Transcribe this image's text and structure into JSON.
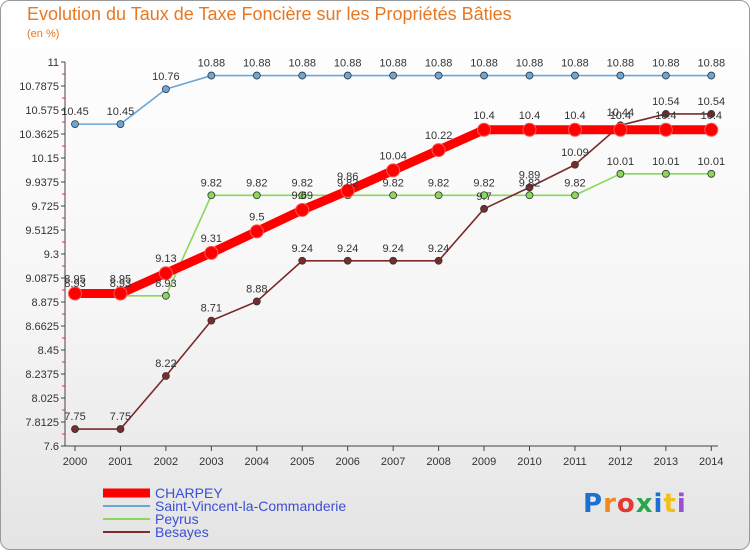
{
  "title": "Evolution du Taux de Taxe Foncière sur les Propriétés Bâties",
  "unit": "(en %)",
  "logo": "Proxiti",
  "logo_colors": [
    "#1f6fd1",
    "#f08a1c",
    "#e23a2e",
    "#2aa64a",
    "#1f6fd1",
    "#f2c01e",
    "#9a4fd6"
  ],
  "chart_data": {
    "type": "line",
    "title": "Evolution du Taux de Taxe Foncière sur les Propriétés Bâties",
    "ylabel": "(en %)",
    "xlabel": "",
    "x": [
      "2000",
      "2001",
      "2002",
      "2003",
      "2004",
      "2005",
      "2006",
      "2007",
      "2008",
      "2009",
      "2010",
      "2011",
      "2012",
      "2013",
      "2014"
    ],
    "ylim": [
      7.6,
      11
    ],
    "yticks": [
      "7.6",
      "7.8125",
      "8.025",
      "8.2375",
      "8.45",
      "8.6625",
      "8.875",
      "9.0875",
      "9.3",
      "9.5125",
      "9.725",
      "9.9375",
      "10.15",
      "10.3625",
      "10.575",
      "10.7875",
      "11"
    ],
    "grid": false,
    "legend_position": "bottom-left",
    "series": [
      {
        "name": "CHARPEY",
        "color": "#ff0000",
        "values": [
          8.95,
          8.95,
          9.13,
          9.31,
          9.5,
          9.69,
          9.86,
          10.04,
          10.22,
          10.4,
          10.4,
          10.4,
          10.4,
          10.4,
          10.4
        ],
        "labels": [
          "8.95",
          "8.95",
          "9.13",
          "9.31",
          "9.5",
          "9.69",
          "9.86",
          "10.04",
          "10.22",
          "10.4",
          "10.4",
          "10.4",
          "10.4",
          "10.4",
          "10.4"
        ]
      },
      {
        "name": "Saint-Vincent-la-Commanderie",
        "color": "#6aa7d8",
        "values": [
          10.45,
          10.45,
          10.76,
          10.88,
          10.88,
          10.88,
          10.88,
          10.88,
          10.88,
          10.88,
          10.88,
          10.88,
          10.88,
          10.88,
          10.88
        ],
        "labels": [
          "10.45",
          "10.45",
          "10.76",
          "10.88",
          "10.88",
          "10.88",
          "10.88",
          "10.88",
          "10.88",
          "10.88",
          "10.88",
          "10.88",
          "10.88",
          "10.88",
          "10.88"
        ]
      },
      {
        "name": "Peyrus",
        "color": "#88d85a",
        "values": [
          8.93,
          8.93,
          8.93,
          9.82,
          9.82,
          9.82,
          9.82,
          9.82,
          9.82,
          9.82,
          9.82,
          9.82,
          10.01,
          10.01,
          10.01
        ],
        "labels": [
          "8.93",
          "8.93",
          "8.93",
          "9.82",
          "9.82",
          "9.82",
          "9.82",
          "9.82",
          "9.82",
          "9.82",
          "9.82",
          "9.82",
          "10.01",
          "10.01",
          "10.01"
        ]
      },
      {
        "name": "Besayes",
        "color": "#7a2b2b",
        "values": [
          7.75,
          7.75,
          8.22,
          8.71,
          8.88,
          9.24,
          9.24,
          9.24,
          9.24,
          9.7,
          9.89,
          10.09,
          10.44,
          10.54,
          10.54
        ],
        "labels": [
          "7.75",
          "7.75",
          "8.22",
          "8.71",
          "8.88",
          "9.24",
          "9.24",
          "9.24",
          "9.24",
          "9.7",
          "9.89",
          "10.09",
          "10.44",
          "10.54",
          "10.54"
        ]
      }
    ]
  }
}
